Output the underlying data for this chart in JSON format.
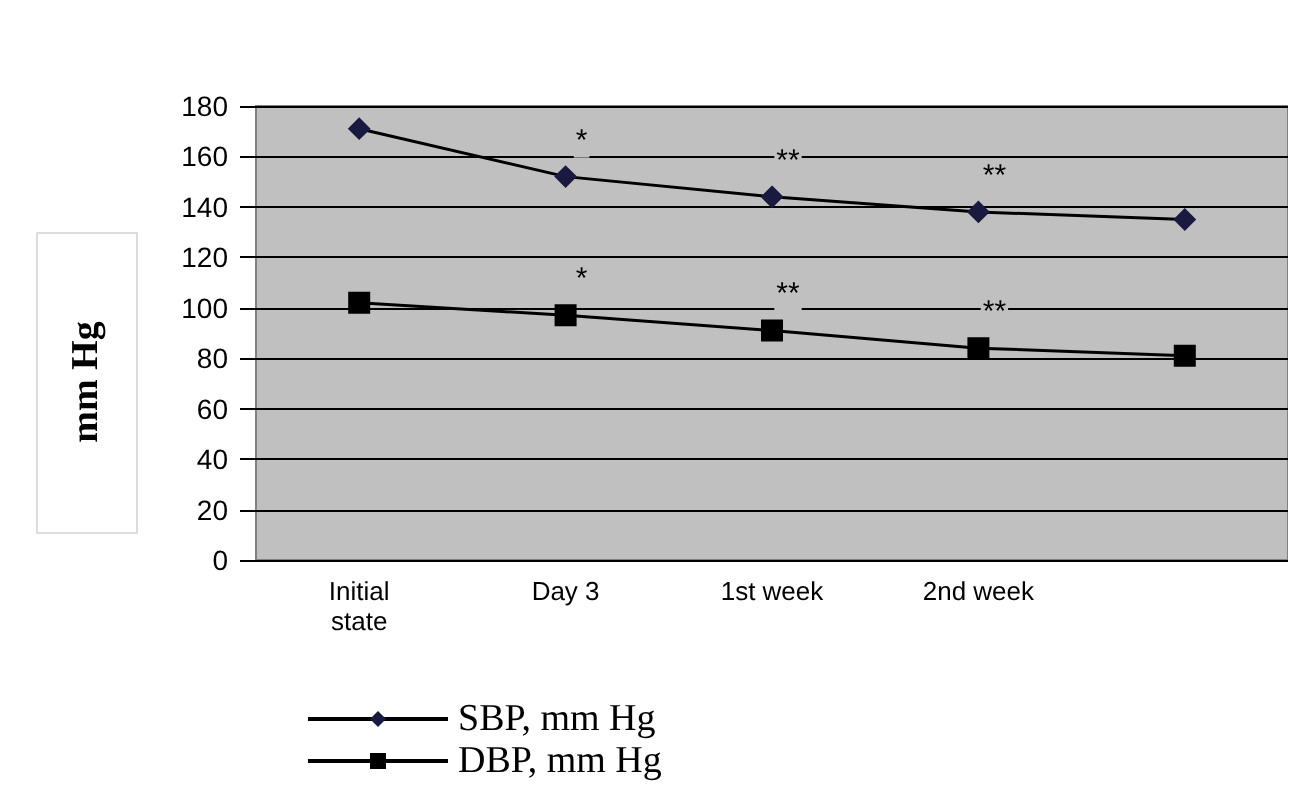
{
  "chart_data": {
    "type": "line",
    "ylabel": "mm Hg",
    "categories": [
      "Initial\nstate",
      "Day 3",
      "1st week",
      "2nd week",
      null
    ],
    "series": [
      {
        "name": "SBP, mm Hg",
        "color": "#1a1a40",
        "marker": "diamond",
        "values": [
          171,
          152,
          144,
          138,
          135
        ]
      },
      {
        "name": "DBP, mm Hg",
        "color": "#000000",
        "marker": "square",
        "values": [
          102,
          97,
          91,
          84,
          81
        ]
      }
    ],
    "ylim": [
      0,
      180
    ],
    "yticks": [
      0,
      20,
      40,
      60,
      80,
      100,
      120,
      140,
      160,
      180
    ],
    "grid": "y",
    "legend": "bottom",
    "line_style": "solid",
    "annotations": [
      {
        "text": "*",
        "x": "Day 3",
        "y": 152
      },
      {
        "text": "**",
        "x": "1st week",
        "y": 144
      },
      {
        "text": "**",
        "x": "2nd week",
        "y": 138
      },
      {
        "text": "*",
        "x": "Day 3",
        "y": 97
      },
      {
        "text": "**",
        "x": "1st week",
        "y": 91
      },
      {
        "text": "**",
        "x": "2nd week",
        "y": 84
      }
    ]
  }
}
